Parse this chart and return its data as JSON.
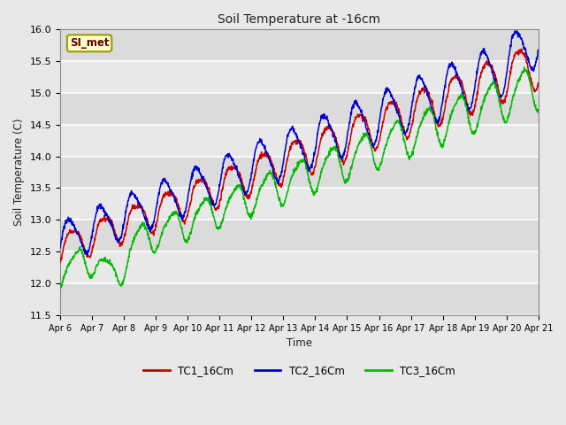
{
  "title": "Soil Temperature at -16cm",
  "xlabel": "Time",
  "ylabel": "Soil Temperature (C)",
  "ylim": [
    11.5,
    16.0
  ],
  "yticks": [
    11.5,
    12.0,
    12.5,
    13.0,
    13.5,
    14.0,
    14.5,
    15.0,
    15.5,
    16.0
  ],
  "legend_labels": [
    "TC1_16Cm",
    "TC2_16Cm",
    "TC3_16Cm"
  ],
  "legend_colors": [
    "#cc0000",
    "#0000cc",
    "#00bb00"
  ],
  "annotation_text": "SI_met",
  "annotation_bg": "#ffffcc",
  "annotation_border": "#999900",
  "bg_color": "#e8e8e8",
  "plot_bg_light": "#e8e8e8",
  "plot_bg_dark": "#d8d8d8",
  "grid_color": "#ffffff",
  "tc1_color": "#cc0000",
  "tc2_color": "#0000cc",
  "tc3_color": "#00bb00",
  "x_tick_labels": [
    "Apr 6",
    "Apr 7",
    "Apr 8",
    "Apr 9",
    "Apr 10",
    "Apr 11",
    "Apr 12",
    "Apr 13",
    "Apr 14",
    "Apr 15",
    "Apr 16",
    "Apr 17",
    "Apr 18",
    "Apr 19",
    "Apr 20",
    "Apr 21"
  ],
  "num_points": 1500
}
